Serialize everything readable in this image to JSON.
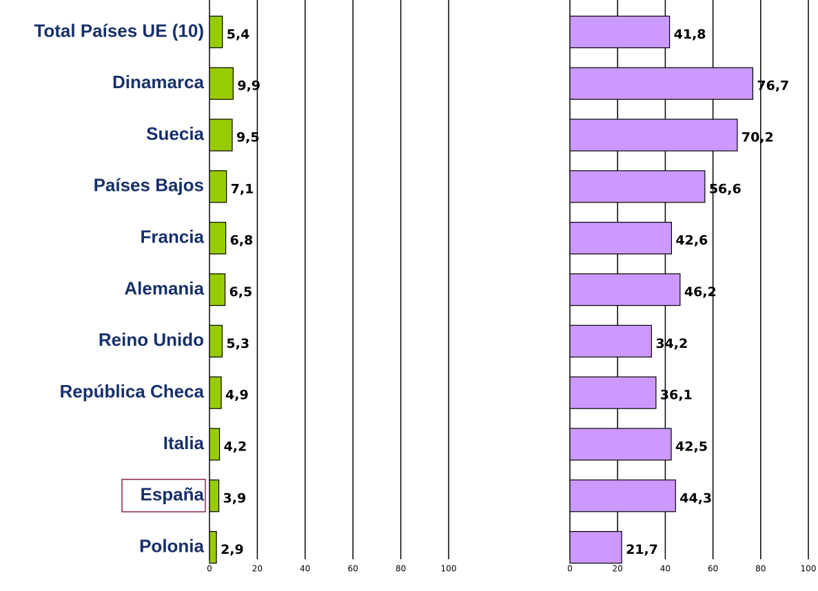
{
  "chart_data": [
    {
      "type": "bar",
      "orientation": "horizontal",
      "categories": [
        "Total Países UE (10)",
        "Dinamarca",
        "Suecia",
        "Países Bajos",
        "Francia",
        "Alemania",
        "Reino Unido",
        "República Checa",
        "Italia",
        "España",
        "Polonia"
      ],
      "values": [
        5.4,
        9.9,
        9.5,
        7.1,
        6.8,
        6.5,
        5.3,
        4.9,
        4.2,
        3.9,
        2.9
      ],
      "value_labels": [
        "5,4",
        "9,9",
        "9,5",
        "7,1",
        "6,8",
        "6,5",
        "5,3",
        "4,9",
        "4,2",
        "3,9",
        "2,9"
      ],
      "color": "#99cc00",
      "xlim": [
        0,
        100
      ],
      "xticks": [
        0,
        20,
        40,
        60,
        80,
        100
      ],
      "grid": true
    },
    {
      "type": "bar",
      "orientation": "horizontal",
      "values": [
        41.8,
        76.7,
        70.2,
        56.6,
        42.6,
        46.2,
        34.2,
        36.1,
        42.5,
        44.3,
        21.7
      ],
      "value_labels": [
        "41,8",
        "76,7",
        "70,2",
        "56,6",
        "42,6",
        "46,2",
        "34,2",
        "36,1",
        "42,5",
        "44,3",
        "21,7"
      ],
      "color": "#cc99ff",
      "xlim": [
        0,
        100
      ],
      "xticks": [
        0,
        20,
        40,
        60,
        80,
        100
      ],
      "grid": true
    }
  ]
}
